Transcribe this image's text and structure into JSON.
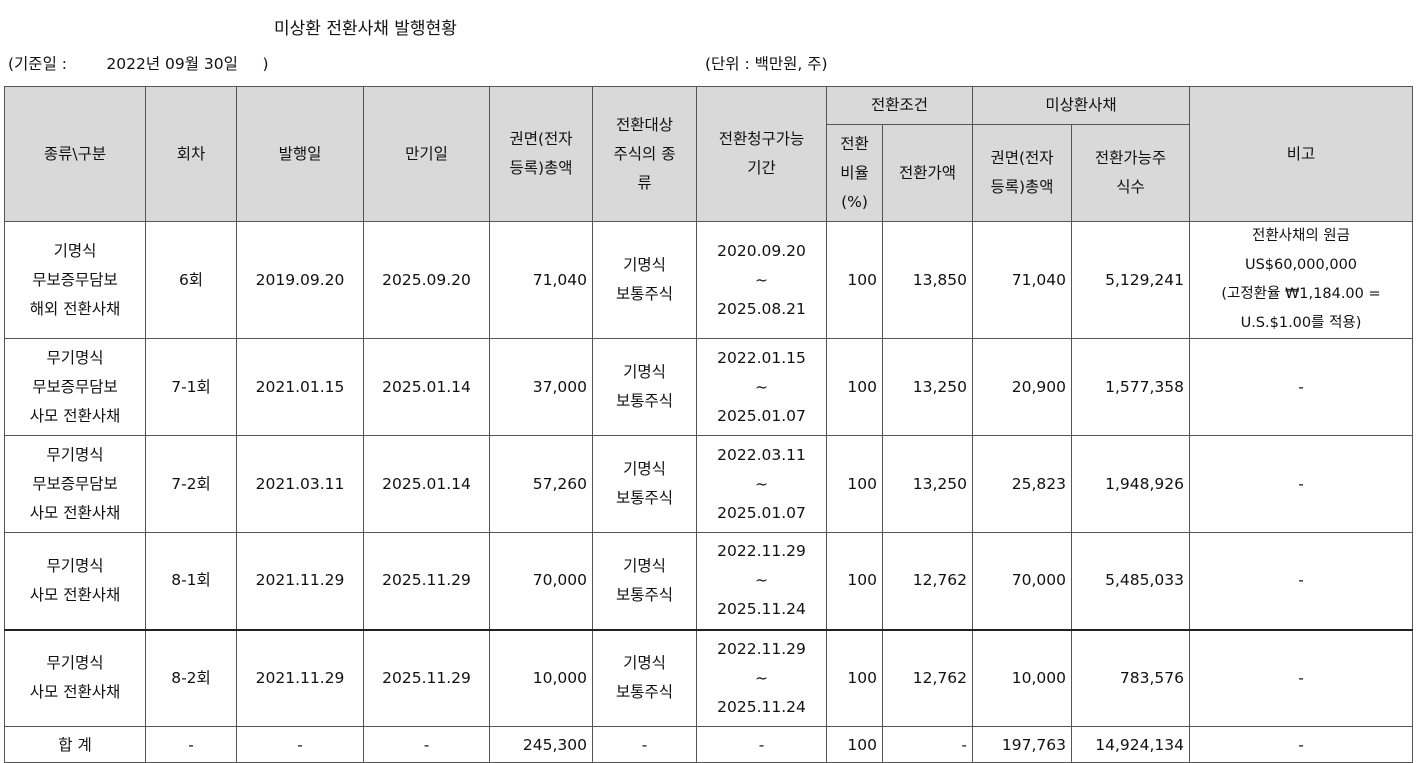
{
  "title": "미상환 전환사채 발행현황",
  "basis": "(기준일 :        2022년 09월 30일     )",
  "unit": "(단위 : 백만원, 주)",
  "headers": {
    "type": "종류\\구분",
    "round": "회차",
    "issue_date": "발행일",
    "maturity": "만기일",
    "face_total": "권면(전자\n등록)총액",
    "share_type": "전환대상\n주식의 종\n류",
    "request_period": "전환청구가능\n기간",
    "conv_terms": "전환조건",
    "conv_ratio": "전환\n비율\n(%)",
    "conv_price": "전환가액",
    "unredeemed": "미상환사채",
    "unredeemed_face": "권면(전자\n등록)총액",
    "convertible_shares": "전환가능주\n식수",
    "remarks": "비고"
  },
  "rows": [
    {
      "type": "기명식\n무보증무담보\n해외 전환사채",
      "round": "6회",
      "issue_date": "2019.09.20",
      "maturity": "2025.09.20",
      "face_total": "71,040",
      "share_type": "기명식\n보통주식",
      "request_period": "2020.09.20\n~\n2025.08.21",
      "conv_ratio": "100",
      "conv_price": "13,850",
      "unredeemed_face": "71,040",
      "convertible_shares": "5,129,241",
      "remarks": "전환사채의 원금\nUS$60,000,000\n(고정환율 ₩1,184.00 =\nU.S.$1.00를 적용)"
    },
    {
      "type": "무기명식\n무보증무담보\n사모 전환사채",
      "round": "7-1회",
      "issue_date": "2021.01.15",
      "maturity": "2025.01.14",
      "face_total": "37,000",
      "share_type": "기명식\n보통주식",
      "request_period": "2022.01.15\n~\n2025.01.07",
      "conv_ratio": "100",
      "conv_price": "13,250",
      "unredeemed_face": "20,900",
      "convertible_shares": "1,577,358",
      "remarks": "-"
    },
    {
      "type": "무기명식\n무보증무담보\n사모 전환사채",
      "round": "7-2회",
      "issue_date": "2021.03.11",
      "maturity": "2025.01.14",
      "face_total": "57,260",
      "share_type": "기명식\n보통주식",
      "request_period": "2022.03.11\n~\n2025.01.07",
      "conv_ratio": "100",
      "conv_price": "13,250",
      "unredeemed_face": "25,823",
      "convertible_shares": "1,948,926",
      "remarks": "-"
    },
    {
      "type": "무기명식\n사모 전환사채",
      "round": "8-1회",
      "issue_date": "2021.11.29",
      "maturity": "2025.11.29",
      "face_total": "70,000",
      "share_type": "기명식\n보통주식",
      "request_period": "2022.11.29\n~\n2025.11.24",
      "conv_ratio": "100",
      "conv_price": "12,762",
      "unredeemed_face": "70,000",
      "convertible_shares": "5,485,033",
      "remarks": "-"
    },
    {
      "type": "무기명식\n사모 전환사채",
      "round": "8-2회",
      "issue_date": "2021.11.29",
      "maturity": "2025.11.29",
      "face_total": "10,000",
      "share_type": "기명식\n보통주식",
      "request_period": "2022.11.29\n~\n2025.11.24",
      "conv_ratio": "100",
      "conv_price": "12,762",
      "unredeemed_face": "10,000",
      "convertible_shares": "783,576",
      "remarks": "-"
    }
  ],
  "total": {
    "type": "합 계",
    "round": "-",
    "issue_date": "-",
    "maturity": "-",
    "face_total": "245,300",
    "share_type": "-",
    "request_period": "-",
    "conv_ratio": "100",
    "conv_price": "-",
    "unredeemed_face": "197,763",
    "convertible_shares": "14,924,134",
    "remarks": "-"
  }
}
